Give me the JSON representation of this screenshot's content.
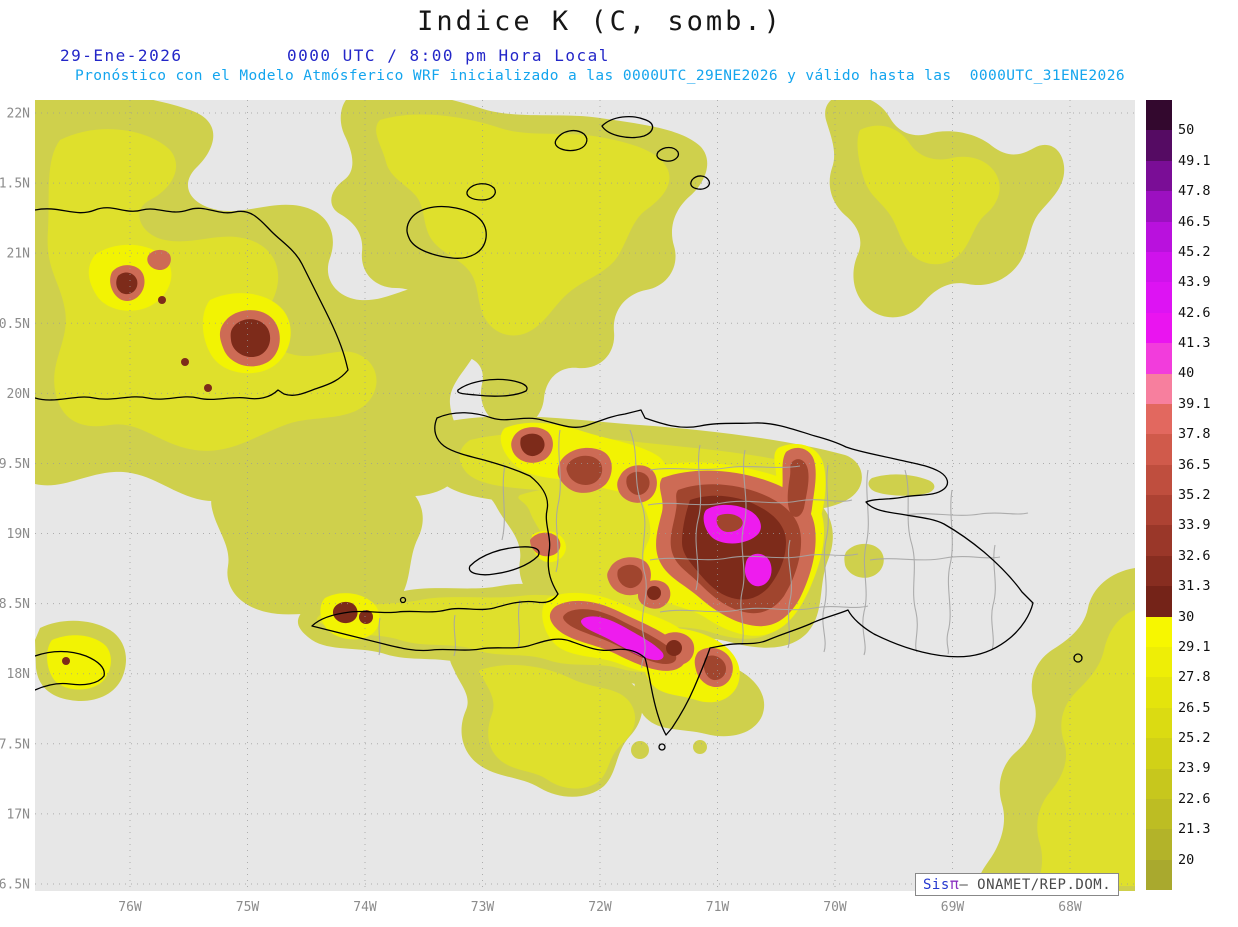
{
  "title": "Indice K (C, somb.)",
  "header": {
    "date": "29-Ene-2026",
    "time": "0000 UTC / 8:00 pm Hora Local",
    "forecast_line": "Pronóstico con el Modelo Atmósferico WRF inicializado a las 0000UTC_29ENE2026 y válido hasta las  0000UTC_31ENE2026"
  },
  "axes": {
    "y_ticks": [
      "22N",
      "1.5N",
      "21N",
      "0.5N",
      "20N",
      "9.5N",
      "19N",
      "8.5N",
      "18N",
      "7.5N",
      "17N",
      "6.5N"
    ],
    "x_ticks": [
      "76W",
      "75W",
      "74W",
      "73W",
      "72W",
      "71W",
      "70W",
      "69W",
      "68W"
    ]
  },
  "colorbar": {
    "labels": [
      "50",
      "49.1",
      "47.8",
      "46.5",
      "45.2",
      "43.9",
      "42.6",
      "41.3",
      "40",
      "39.1",
      "37.8",
      "36.5",
      "35.2",
      "33.9",
      "32.6",
      "31.3",
      "30",
      "29.1",
      "27.8",
      "26.5",
      "25.2",
      "23.9",
      "22.6",
      "21.3",
      "20"
    ],
    "colors": [
      "#33082e",
      "#550b63",
      "#7a0d96",
      "#9c10c0",
      "#b911dd",
      "#cf12ec",
      "#dd13f3",
      "#ea14f0",
      "#f23cdc",
      "#f77f9e",
      "#e2685f",
      "#d05a4b",
      "#bf4e3e",
      "#ad4233",
      "#9a3729",
      "#872d20",
      "#742318",
      "#f7f700",
      "#eeee06",
      "#e4e40c",
      "#dbdb12",
      "#d1d117",
      "#c7c71d",
      "#bdbd23",
      "#b3b329",
      "#a9a92e"
    ]
  },
  "palette": {
    "map_background": "#e7e7e7",
    "yellow_low": "#cfd04c",
    "yellow_mid": "#dfe02c",
    "yellow_high": "#f2f303",
    "red_low": "#cd6b55",
    "red_mid": "#a0452e",
    "red_high": "#7d2b1a",
    "magenta": "#ee1cee",
    "header_blue": "#2326c8",
    "header_cyan": "#14a5ee"
  },
  "credit": {
    "brand_sis": "Sis",
    "brand_pi": "π",
    "org": "– ONAMET/REP.DOM."
  }
}
